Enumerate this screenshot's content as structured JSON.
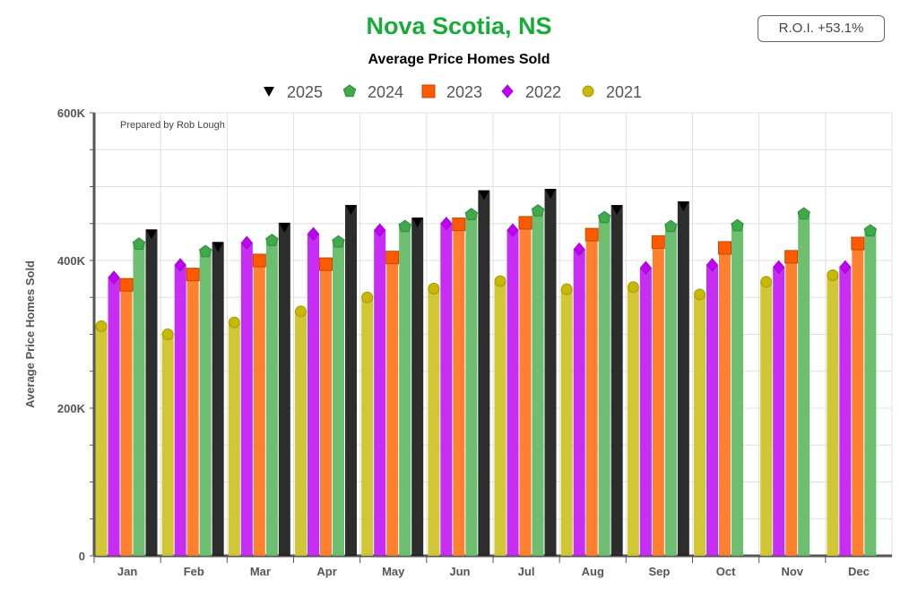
{
  "header": {
    "title": "Nova Scotia, NS",
    "subtitle": "Average Price Homes Sold",
    "roi_label": "R.O.I. +53.1%"
  },
  "chart_data": {
    "type": "bar",
    "title": "Nova Scotia, NS",
    "subtitle": "Average Price Homes Sold",
    "ylabel": "Average Price Homes Sold",
    "xlabel": "",
    "annotation": "Prepared by Rob Lough",
    "ylim": [
      0,
      600000
    ],
    "yticks": [
      0,
      200000,
      400000,
      600000
    ],
    "ytick_labels": [
      "0",
      "200K",
      "400K",
      "600K"
    ],
    "grid": true,
    "legend_position": "top",
    "categories": [
      "Jan",
      "Feb",
      "Mar",
      "Apr",
      "May",
      "Jun",
      "Jul",
      "Aug",
      "Sep",
      "Oct",
      "Nov",
      "Dec"
    ],
    "series": [
      {
        "name": "2021",
        "color": "#cfc42a",
        "marker": "circle",
        "values": [
          311000,
          300000,
          316000,
          331000,
          350000,
          362000,
          372000,
          361000,
          364000,
          354000,
          371000,
          380000
        ]
      },
      {
        "name": "2022",
        "color": "#c522f5",
        "marker": "diamond",
        "values": [
          377000,
          394000,
          424000,
          436000,
          441000,
          450000,
          441000,
          415000,
          390000,
          394000,
          391000,
          391000
        ]
      },
      {
        "name": "2023",
        "color": "#ff7a24",
        "marker": "square",
        "values": [
          367000,
          381000,
          400000,
          395000,
          404000,
          449000,
          451000,
          435000,
          425000,
          417000,
          405000,
          423000
        ]
      },
      {
        "name": "2024",
        "color": "#66bb6a",
        "marker": "pentagon",
        "values": [
          422000,
          412000,
          427000,
          425000,
          446000,
          462000,
          467000,
          458000,
          446000,
          447000,
          463000,
          440000
        ]
      },
      {
        "name": "2025",
        "color": "#222222",
        "marker": "triangle-down",
        "values": [
          442000,
          425000,
          451000,
          475000,
          458000,
          495000,
          497000,
          475000,
          480000,
          null,
          null,
          null
        ]
      }
    ],
    "legend_order": [
      "2025",
      "2024",
      "2023",
      "2022",
      "2021"
    ]
  }
}
